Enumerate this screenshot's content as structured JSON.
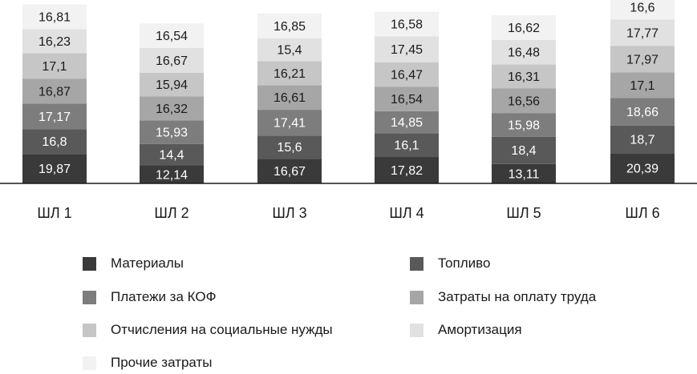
{
  "chart_data": {
    "type": "bar",
    "stacked": true,
    "categories": [
      "ШЛ 1",
      "ШЛ 2",
      "ШЛ 3",
      "ШЛ 4",
      "ШЛ 5",
      "ШЛ 6"
    ],
    "series": [
      {
        "name": "Материалы",
        "color": "#3a3a3a",
        "values": [
          19.87,
          12.14,
          16.67,
          17.82,
          13.11,
          20.39
        ]
      },
      {
        "name": "Топливо",
        "color": "#595959",
        "values": [
          16.8,
          14.4,
          15.6,
          16.1,
          18.4,
          18.7
        ]
      },
      {
        "name": "Платежи за КОФ",
        "color": "#7d7d7d",
        "values": [
          17.17,
          15.93,
          17.41,
          14.85,
          15.98,
          18.66
        ]
      },
      {
        "name": "Затраты на оплату труда",
        "color": "#a6a6a6",
        "values": [
          16.87,
          16.32,
          16.61,
          16.54,
          16.56,
          17.1
        ]
      },
      {
        "name": "Отчисления на социальные нужды",
        "color": "#c6c6c6",
        "values": [
          17.1,
          15.94,
          16.21,
          16.47,
          16.31,
          17.97
        ]
      },
      {
        "name": "Амортизация",
        "color": "#e1e1e1",
        "values": [
          16.23,
          16.67,
          15.4,
          17.45,
          16.48,
          17.77
        ]
      },
      {
        "name": "Прочие затраты",
        "color": "#f2f2f2",
        "values": [
          16.81,
          16.54,
          16.85,
          16.58,
          16.62,
          16.6
        ]
      }
    ],
    "data_labels": {
      "ШЛ 1": [
        "19,87",
        "16,8",
        "17,17",
        "16,87",
        "17,1",
        "16,23",
        "16,81"
      ],
      "ШЛ 2": [
        "12,14",
        "14,4",
        "15,93",
        "16,32",
        "15,94",
        "16,67",
        "16,54"
      ],
      "ШЛ 3": [
        "16,67",
        "15,6",
        "17,41",
        "16,61",
        "16,21",
        "15,4",
        "16,85"
      ],
      "ШЛ 4": [
        "17,82",
        "16,1",
        "14,85",
        "16,54",
        "16,47",
        "17,45",
        "16,58"
      ],
      "ШЛ 5": [
        "13,11",
        "18,4",
        "15,98",
        "16,56",
        "16,31",
        "16,48",
        "16,62"
      ],
      "ШЛ 6": [
        "20,39",
        "18,7",
        "18,66",
        "17,1",
        "17,97",
        "17,77",
        "16,6"
      ]
    },
    "legend_position": "bottom",
    "grid": false,
    "ylim": [
      0,
      130
    ],
    "xlabel": "",
    "ylabel": ""
  }
}
